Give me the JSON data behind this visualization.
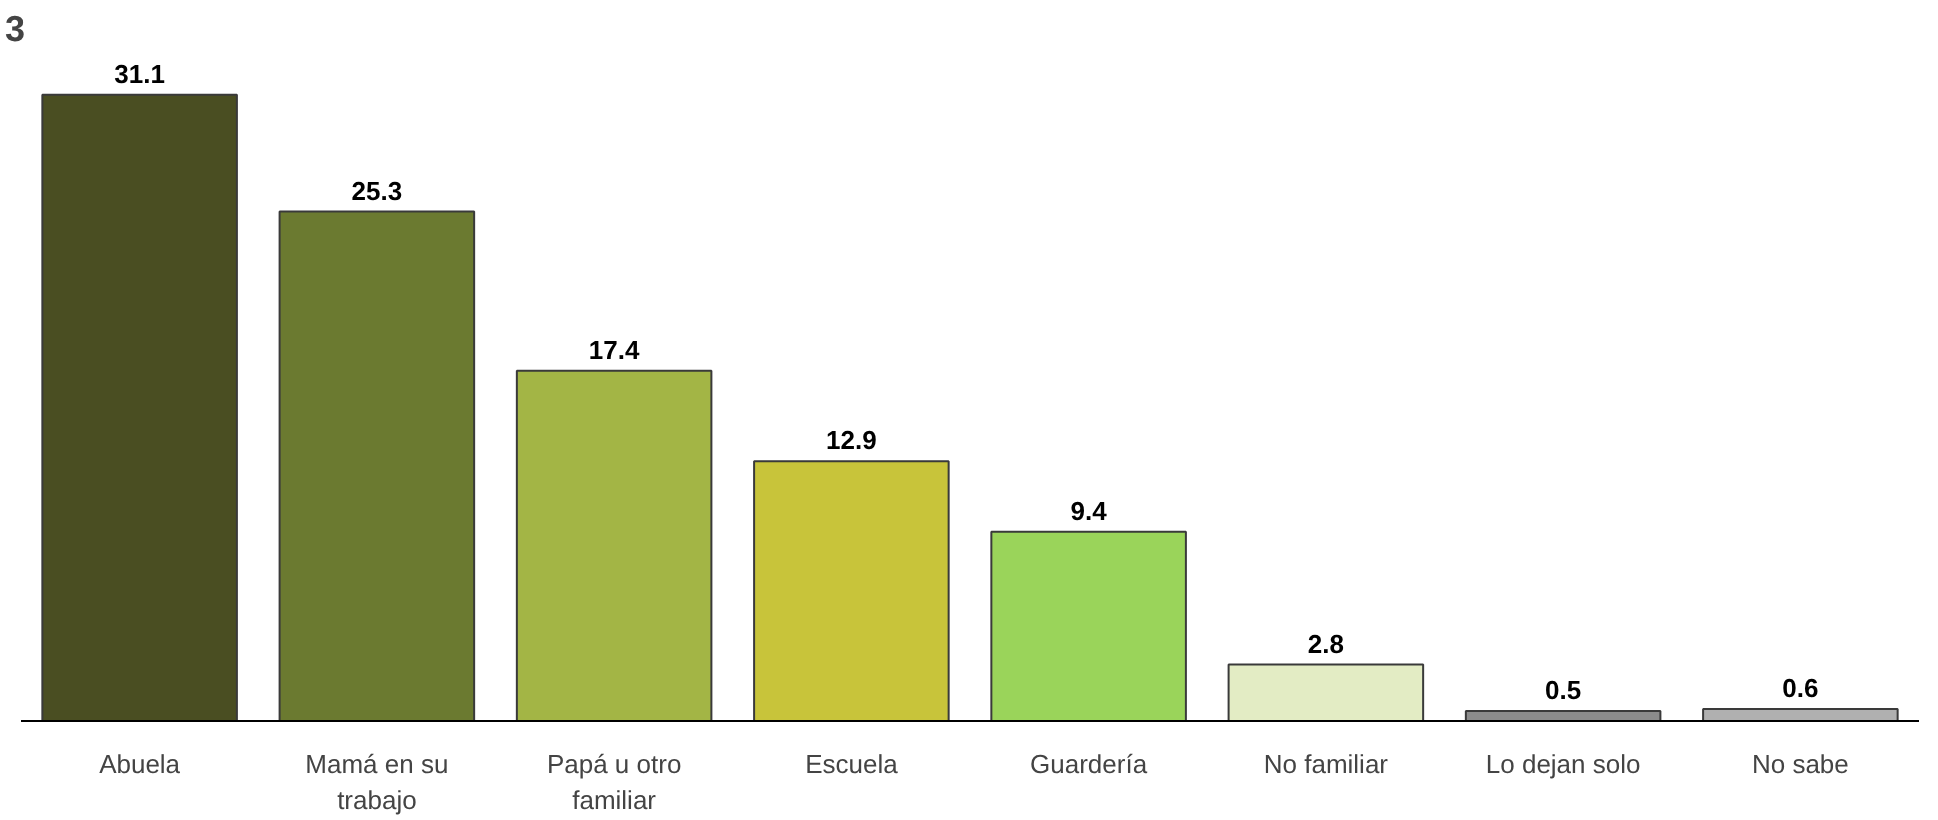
{
  "chart_data": {
    "type": "bar",
    "title": "3",
    "categories": [
      "Abuela",
      "Mamá en su trabajo",
      "Papá u otro familiar",
      "Escuela",
      "Guardería",
      "No familiar",
      "Lo dejan solo",
      "No sabe"
    ],
    "values": [
      31.1,
      25.3,
      17.4,
      12.9,
      9.4,
      2.8,
      0.5,
      0.6
    ],
    "colors": [
      "#4a4e22",
      "#6b7a30",
      "#a3b545",
      "#c8c43a",
      "#9ad45a",
      "#e3ecc4",
      "#8c8c8c",
      "#b0b0b0"
    ],
    "data_labels": true
  }
}
